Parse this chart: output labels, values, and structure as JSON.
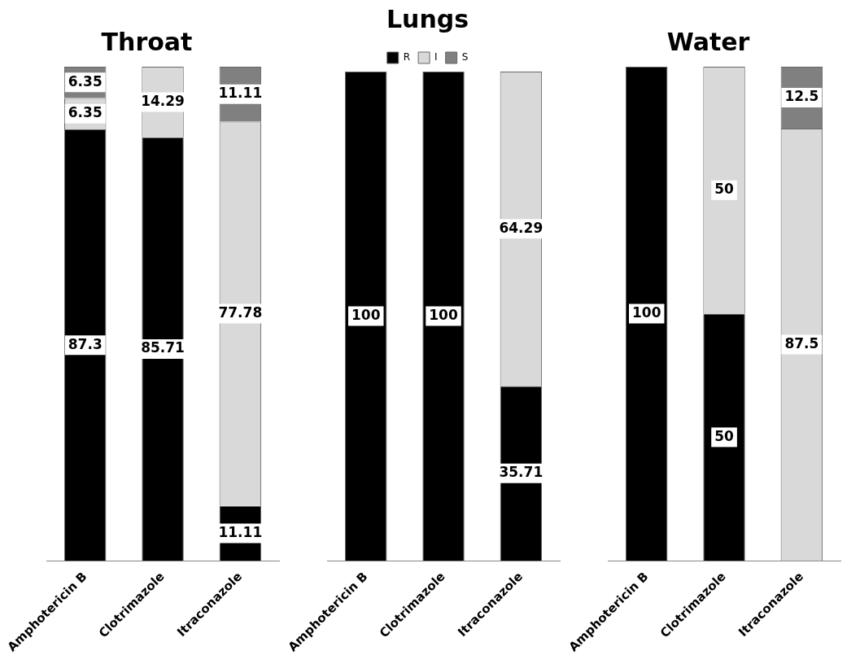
{
  "chart_data": [
    {
      "type": "bar",
      "title": "Throat",
      "categories": [
        "Amphotericin B",
        "Clotrimazole",
        "Itraconazole"
      ],
      "stacked": true,
      "data_labels": true,
      "series": [
        {
          "color": "#000000",
          "values": [
            87.3,
            85.71,
            11.11
          ]
        },
        {
          "color": "#d9d9d9",
          "values": [
            6.35,
            14.29,
            77.78
          ]
        },
        {
          "color": "#808080",
          "values": [
            6.35,
            null,
            11.11
          ]
        }
      ]
    },
    {
      "type": "bar",
      "title": "Lungs",
      "categories": [
        "Amphotericin B",
        "Clotrimazole",
        "Itraconazole"
      ],
      "stacked": true,
      "data_labels": true,
      "legend": "top",
      "series": [
        {
          "name": "R",
          "color": "#000000",
          "values": [
            100,
            100,
            35.71
          ]
        },
        {
          "name": "I",
          "color": "#d9d9d9",
          "values": [
            null,
            null,
            64.29
          ]
        },
        {
          "name": "S",
          "color": "#808080",
          "values": [
            null,
            null,
            null
          ]
        }
      ]
    },
    {
      "type": "bar",
      "title": "Water",
      "categories": [
        "Amphotericin B",
        "Clotrimazole",
        "Itraconazole"
      ],
      "stacked": true,
      "data_labels": true,
      "series": [
        {
          "color": "#000000",
          "values": [
            100,
            50,
            null
          ]
        },
        {
          "color": "#d9d9d9",
          "values": [
            null,
            50,
            87.5
          ]
        },
        {
          "color": "#808080",
          "values": [
            null,
            null,
            12.5
          ]
        }
      ]
    }
  ]
}
